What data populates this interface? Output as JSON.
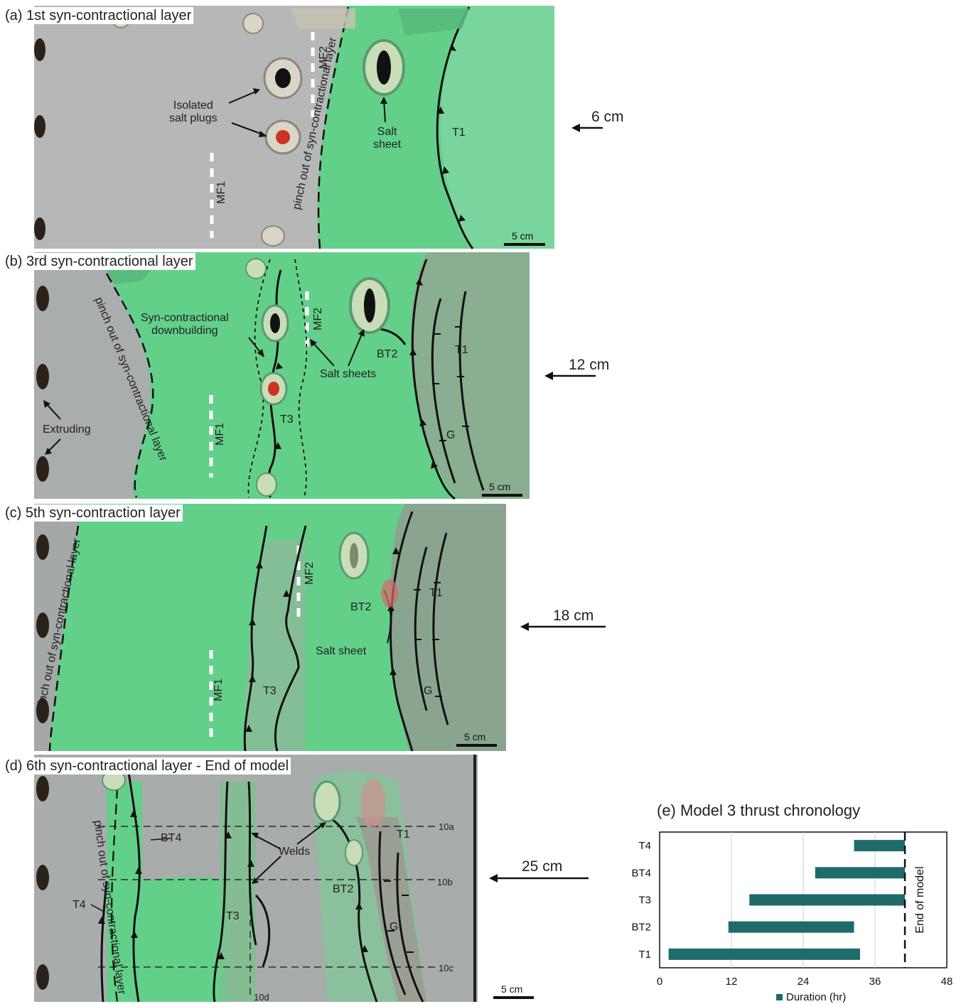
{
  "panels": {
    "a": {
      "title": "(a)  1st syn-contractional layer",
      "labels": {
        "isolated_salt_plugs": "Isolated\nsalt plugs",
        "salt_sheet": "Salt\nsheet",
        "mf1": "MF1",
        "mf2": "MF2",
        "pinch_out": "pinch out of syn-contractional layer",
        "t1": "T1"
      },
      "shortening": "6 cm",
      "scale": "5 cm"
    },
    "b": {
      "title": "(b)  3rd syn-contractional layer",
      "labels": {
        "downbuilding": "Syn-contractional\ndownbuilding",
        "salt_sheets": "Salt sheets",
        "extruding": "Extruding",
        "pinch_out": "pinch out of syn-contractional layer",
        "mf1": "MF1",
        "mf2": "MF2",
        "t3": "T3",
        "bt2": "BT2",
        "t1": "T1",
        "g": "G"
      },
      "shortening": "12 cm",
      "scale": "5 cm"
    },
    "c": {
      "title": "(c)  5th syn-contraction layer",
      "labels": {
        "pinch_out": "pinch out of syn-contractional layer",
        "mf1": "MF1",
        "mf2": "MF2",
        "t3": "T3",
        "bt2": "BT2",
        "salt_sheet": "Salt sheet",
        "t1": "T1",
        "g": "G"
      },
      "shortening": "18 cm",
      "scale": "5 cm"
    },
    "d": {
      "title": "(d)  6th syn-contractional layer - End of model",
      "labels": {
        "bt4": "BT4",
        "welds": "Welds",
        "t4": "T4",
        "t3": "T3",
        "bt2": "BT2",
        "t1": "T1",
        "g": "G",
        "pinch_out": "pinch out of syn-contractional layer",
        "line_10a": "10a",
        "line_10b": "10b",
        "line_10c": "10c",
        "line_10d": "10d"
      },
      "shortening": "25 cm",
      "scale": "5 cm"
    }
  },
  "colors": {
    "green": "#5fd38a",
    "grey": "#b4b6b5",
    "bar": "#1f6b6b"
  },
  "chart_data": {
    "type": "bar",
    "orientation": "horizontal",
    "title": "(e) Model 3 thrust chronology",
    "categories": [
      "T4",
      "BT4",
      "T3",
      "BT2",
      "T1"
    ],
    "series": [
      {
        "name": "Duration (hr)",
        "start": [
          32.5,
          26,
          15,
          11.5,
          1.5
        ],
        "end": [
          41,
          41,
          41,
          32.5,
          33.5
        ]
      }
    ],
    "xlim": [
      0,
      48
    ],
    "xticks": [
      0,
      12,
      24,
      36,
      48
    ],
    "grid": true,
    "legend": "bottom",
    "annotation": "End of model",
    "annotation_x": 41
  }
}
